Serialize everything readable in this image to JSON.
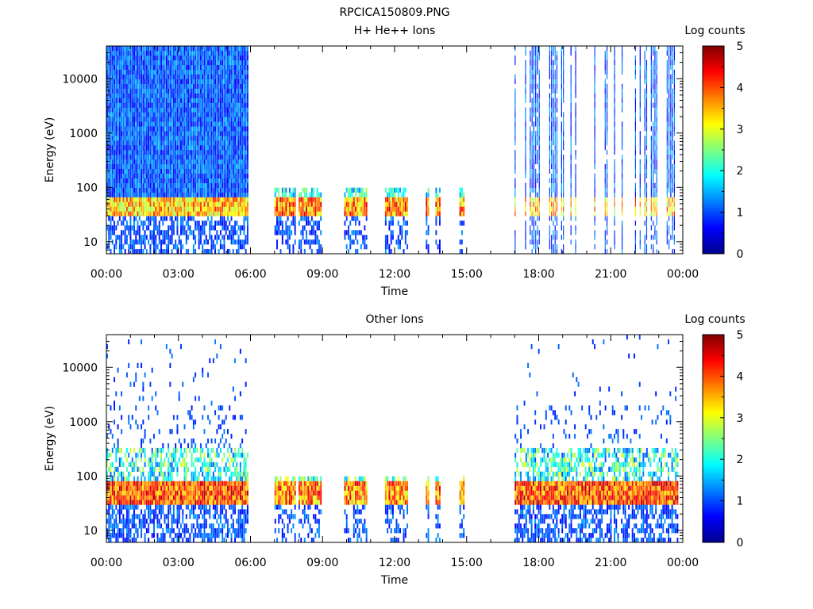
{
  "page_title": "RPCICA150809.PNG",
  "chart_data": [
    {
      "type": "heatmap",
      "title": "H+ He++ Ions",
      "xlabel": "Time",
      "ylabel": "Energy (eV)",
      "x_ticks": [
        "00:00",
        "03:00",
        "06:00",
        "09:00",
        "12:00",
        "15:00",
        "18:00",
        "21:00",
        "00:00"
      ],
      "x_range_hours": [
        0,
        24
      ],
      "y_scale": "log",
      "y_range_ev": [
        6,
        40000
      ],
      "y_ticks": [
        10,
        100,
        1000,
        10000
      ],
      "colorbar": {
        "label": "Log counts",
        "range": [
          0,
          5
        ],
        "ticks": [
          0,
          1,
          2,
          3,
          4,
          5
        ]
      },
      "data_intervals_hours": [
        [
          0,
          5.9
        ],
        [
          7.0,
          7.9
        ],
        [
          8.0,
          8.9
        ],
        [
          9.9,
          10.8
        ],
        [
          11.6,
          12.5
        ],
        [
          13.3,
          13.4
        ],
        [
          13.7,
          13.9
        ],
        [
          14.7,
          14.85
        ],
        [
          17.0,
          23.8
        ]
      ],
      "peak_band_ev": [
        30,
        70
      ],
      "grid": false
    },
    {
      "type": "heatmap",
      "title": "Other Ions",
      "xlabel": "Time",
      "ylabel": "Energy (eV)",
      "x_ticks": [
        "00:00",
        "03:00",
        "06:00",
        "09:00",
        "12:00",
        "15:00",
        "18:00",
        "21:00",
        "00:00"
      ],
      "x_range_hours": [
        0,
        24
      ],
      "y_scale": "log",
      "y_range_ev": [
        6,
        40000
      ],
      "y_ticks": [
        10,
        100,
        1000,
        10000
      ],
      "colorbar": {
        "label": "Log counts",
        "range": [
          0,
          5
        ],
        "ticks": [
          0,
          1,
          2,
          3,
          4,
          5
        ]
      },
      "data_intervals_hours": [
        [
          0,
          5.9
        ],
        [
          7.0,
          7.9
        ],
        [
          8.0,
          8.9
        ],
        [
          9.9,
          10.8
        ],
        [
          11.6,
          12.5
        ],
        [
          13.3,
          13.4
        ],
        [
          13.7,
          13.9
        ],
        [
          14.7,
          14.85
        ],
        [
          17.0,
          23.8
        ]
      ],
      "peak_band_ev": [
        30,
        80
      ],
      "grid": false
    }
  ]
}
